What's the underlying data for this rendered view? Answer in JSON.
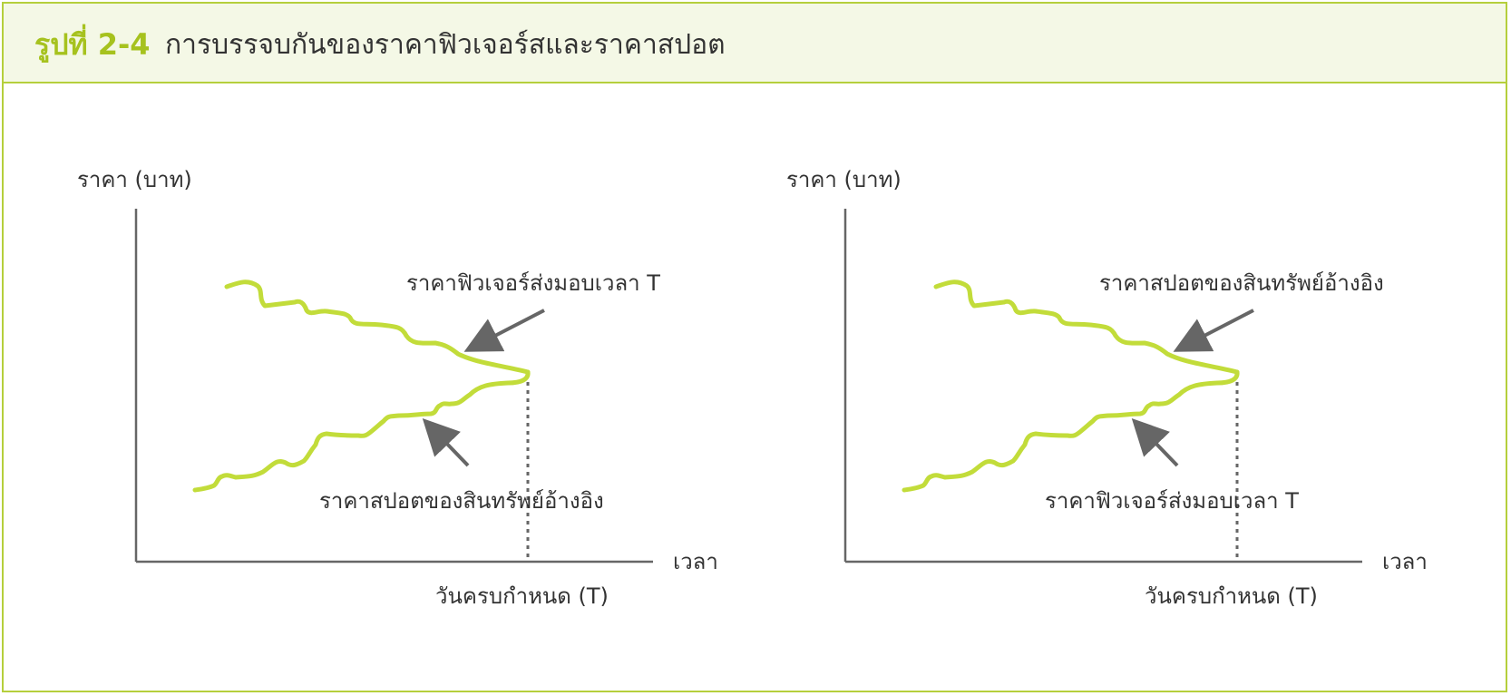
{
  "header": {
    "figure_label": "รูปที่ 2-4",
    "title": "การบรรจบกันของราคาฟิวเจอร์สและราคาสปอต"
  },
  "colors": {
    "accent": "#b5cf3c",
    "line": "#c2dc3a",
    "arrow": "#666666",
    "axis": "#666666",
    "header_bg": "#f4f8e6"
  },
  "left_panel": {
    "y_axis_label": "ราคา (บาท)",
    "x_axis_label": "เวลา",
    "maturity_label": "วันครบกำหนด (T)",
    "upper_curve_label": "ราคาฟิวเจอร์ส่งมอบเวลา T",
    "lower_curve_label": "ราคาสปอตของสินทรัพย์อ้างอิง"
  },
  "right_panel": {
    "y_axis_label": "ราคา (บาท)",
    "x_axis_label": "เวลา",
    "maturity_label": "วันครบกำหนด (T)",
    "upper_curve_label": "ราคาสปอตของสินทรัพย์อ้างอิง",
    "lower_curve_label": "ราคาฟิวเจอร์ส่งมอบเวลา T"
  }
}
